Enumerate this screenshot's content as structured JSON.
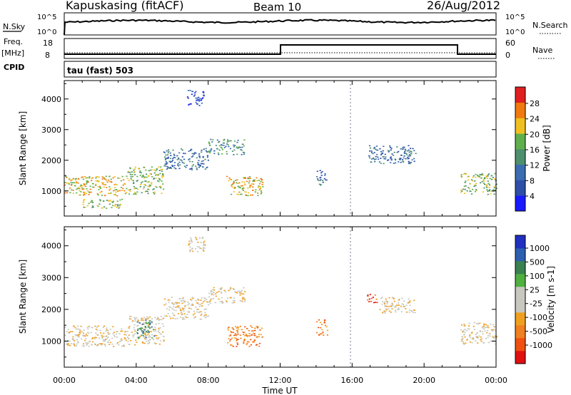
{
  "header": {
    "station": "Kapuskasing (fitACF)",
    "beam": "Beam 10",
    "date": "26/Aug/2012"
  },
  "top_panels": {
    "nsky_label": "N.Sky",
    "nsky_ticks": [
      "10^5",
      "10^0"
    ],
    "nsearch_label": "N.Search",
    "nsearch_ticks": [
      "10^5",
      "10^0"
    ],
    "freq_label": "Freq.",
    "freq_unit": "[MHz]",
    "freq_ticks": [
      "18",
      "8"
    ],
    "nave_label": "Nave",
    "nave_ticks": [
      "60",
      "0"
    ],
    "cpid_label": "CPID",
    "cpid_text": "tau (fast) 503"
  },
  "colors": {
    "power_scale": [
      "#1a1aff",
      "#2d4fa8",
      "#3b6db0",
      "#4e8f6e",
      "#5fb04c",
      "#f0c020",
      "#f07a10",
      "#e02020"
    ],
    "velocity_scale": [
      "#e01010",
      "#f05010",
      "#f08020",
      "#f0a020",
      "#c8c8c0",
      "#c8c8c0",
      "#4fb040",
      "#3a8050",
      "#2d5fb0",
      "#2030c0"
    ]
  },
  "chart_data": [
    {
      "type": "heatmap",
      "name": "power",
      "ylabel": "Slant Range [km]",
      "yticks": [
        1000,
        2000,
        3000,
        4000
      ],
      "ylim": [
        180,
        4600
      ],
      "xlim": [
        0,
        24
      ],
      "colorbar_label": "Power [dB]",
      "colorbar_ticks": [
        "28",
        "24",
        "20",
        "16",
        "12",
        "8",
        "4"
      ],
      "echo_regions": [
        {
          "t0": 0.0,
          "t1": 3.5,
          "r0": 850,
          "r1": 1500,
          "level": 5
        },
        {
          "t0": 1.0,
          "t1": 3.2,
          "r0": 450,
          "r1": 750,
          "level": 4
        },
        {
          "t0": 3.5,
          "t1": 5.5,
          "r0": 900,
          "r1": 1800,
          "level": 4
        },
        {
          "t0": 5.5,
          "t1": 8.0,
          "r0": 1700,
          "r1": 2400,
          "level": 2
        },
        {
          "t0": 8.0,
          "t1": 10.0,
          "r0": 2200,
          "r1": 2700,
          "level": 3
        },
        {
          "t0": 9.0,
          "t1": 11.0,
          "r0": 850,
          "r1": 1500,
          "level": 5
        },
        {
          "t0": 6.8,
          "t1": 7.8,
          "r0": 3800,
          "r1": 4300,
          "level": 1
        },
        {
          "t0": 14.0,
          "t1": 14.6,
          "r0": 1200,
          "r1": 1700,
          "level": 2
        },
        {
          "t0": 16.8,
          "t1": 19.5,
          "r0": 1900,
          "r1": 2500,
          "level": 2
        },
        {
          "t0": 22.0,
          "t1": 24.0,
          "r0": 900,
          "r1": 1600,
          "level": 4
        }
      ]
    },
    {
      "type": "heatmap",
      "name": "velocity",
      "ylabel": "Slant Range [km]",
      "xlabel": "Time UT",
      "xticks": [
        "00:00",
        "04:00",
        "08:00",
        "12:00",
        "16:00",
        "20:00",
        "00:00"
      ],
      "yticks": [
        1000,
        2000,
        3000,
        4000
      ],
      "ylim": [
        180,
        4600
      ],
      "xlim": [
        0,
        24
      ],
      "colorbar_label": "Velocity [m s-1]",
      "colorbar_ticks": [
        "1000",
        "500",
        "100",
        "25",
        "-25",
        "-100",
        "-500",
        "-1000"
      ],
      "echo_regions": [
        {
          "t0": 0.0,
          "t1": 3.5,
          "r0": 850,
          "r1": 1500,
          "level": 4
        },
        {
          "t0": 3.5,
          "t1": 5.5,
          "r0": 900,
          "r1": 1800,
          "level": 4
        },
        {
          "t0": 4.0,
          "t1": 5.0,
          "r0": 1100,
          "r1": 1700,
          "level": 7
        },
        {
          "t0": 5.5,
          "t1": 8.0,
          "r0": 1700,
          "r1": 2400,
          "level": 4
        },
        {
          "t0": 8.0,
          "t1": 10.0,
          "r0": 2200,
          "r1": 2700,
          "level": 4
        },
        {
          "t0": 9.0,
          "t1": 11.0,
          "r0": 850,
          "r1": 1500,
          "level": 2
        },
        {
          "t0": 6.8,
          "t1": 7.8,
          "r0": 3800,
          "r1": 4300,
          "level": 4
        },
        {
          "t0": 14.0,
          "t1": 14.6,
          "r0": 1200,
          "r1": 1700,
          "level": 2
        },
        {
          "t0": 16.8,
          "t1": 17.4,
          "r0": 2200,
          "r1": 2500,
          "level": 1
        },
        {
          "t0": 17.5,
          "t1": 19.5,
          "r0": 1900,
          "r1": 2400,
          "level": 4
        },
        {
          "t0": 22.0,
          "t1": 24.0,
          "r0": 900,
          "r1": 1600,
          "level": 4
        }
      ]
    }
  ]
}
